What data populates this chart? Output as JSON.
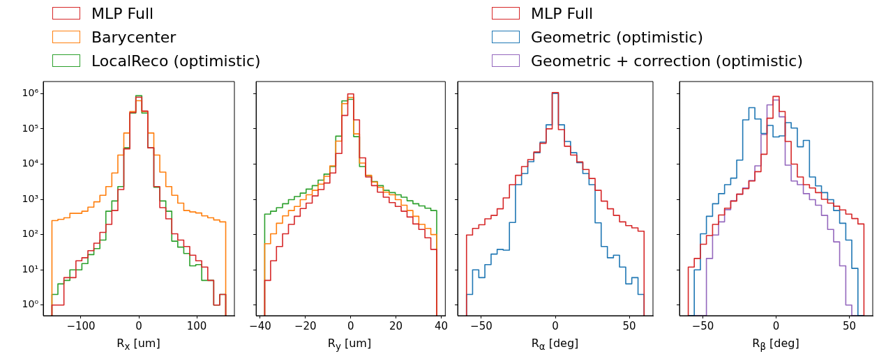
{
  "chart_data": [
    {
      "type": "histogram",
      "xlabel": "R$_{x}$ [um]",
      "legend": "top",
      "grid": false,
      "log": true,
      "bins": [
        -150,
        -139.7,
        -129.3,
        -119,
        -108.6,
        -98.3,
        -87.9,
        -77.6,
        -67.2,
        -56.9,
        -46.6,
        -36.2,
        -25.9,
        -15.5,
        -5.2,
        5.2,
        15.5,
        25.9,
        36.2,
        46.6,
        56.9,
        67.2,
        77.6,
        87.9,
        98.3,
        108.6,
        119,
        129.3,
        139.7,
        150
      ],
      "series": [
        {
          "name": "MLP Full",
          "color": "#d62728",
          "values": [
            1,
            1,
            6,
            6,
            18,
            22,
            35,
            57,
            115,
            195,
            480,
            1900,
            27000,
            290000,
            790000,
            320000,
            29000,
            2300,
            580,
            280,
            105,
            70,
            46,
            26,
            18,
            12,
            5,
            1,
            2
          ]
        },
        {
          "name": "Barycenter",
          "color": "#ff7f0e",
          "values": [
            250,
            270,
            300,
            400,
            400,
            460,
            600,
            850,
            1300,
            2300,
            5600,
            18000,
            76000,
            310000,
            630000,
            310000,
            76000,
            18000,
            5900,
            2300,
            1300,
            780,
            480,
            440,
            410,
            340,
            300,
            260,
            230
          ]
        },
        {
          "name": "LocalReco (optimistic)",
          "color": "#2ca02c",
          "values": [
            2,
            4,
            5,
            10,
            10,
            15,
            27,
            40,
            70,
            460,
            900,
            2300,
            29000,
            280000,
            870000,
            280000,
            29000,
            2200,
            900,
            460,
            65,
            44,
            29,
            13,
            14,
            5,
            5,
            1,
            2
          ]
        }
      ],
      "xlim": [
        -165,
        165
      ],
      "xticks": [
        {
          "value": -100,
          "label": "−100"
        },
        0,
        100
      ],
      "ylim": [
        0.5,
        2200000
      ],
      "yticks": [
        {
          "value": 1,
          "label": "10⁰"
        },
        {
          "value": 10,
          "label": "10¹"
        },
        {
          "value": 100,
          "label": "10²"
        },
        {
          "value": 1000,
          "label": "10³"
        },
        {
          "value": 10000,
          "label": "10⁴"
        },
        {
          "value": 100000,
          "label": "10⁵"
        },
        {
          "value": 1000000,
          "label": "10⁶"
        }
      ]
    },
    {
      "type": "histogram",
      "xlabel": "R$_{y}$ [um]",
      "grid": false,
      "log": true,
      "tick_labels": "x",
      "yticks": [
        {
          "value": 1,
          "label": null
        },
        {
          "value": 10,
          "label": null
        },
        {
          "value": 100,
          "label": null
        },
        {
          "value": 1000,
          "label": null
        },
        {
          "value": 10000,
          "label": null
        },
        {
          "value": 100000,
          "label": null
        },
        {
          "value": 1000000,
          "label": null
        }
      ],
      "bins": [
        -38,
        -35.4,
        -32.8,
        -30.1,
        -27.5,
        -24.9,
        -22.3,
        -19.7,
        -17,
        -14.4,
        -11.8,
        -9.2,
        -6.6,
        -3.9,
        -1.3,
        1.3,
        3.9,
        6.6,
        9.2,
        11.8,
        14.4,
        17,
        19.7,
        22.3,
        24.9,
        27.5,
        30.1,
        32.8,
        35.4,
        38
      ],
      "series": [
        {
          "color": "#d62728",
          "values": [
            5,
            18,
            46,
            105,
            195,
            330,
            550,
            780,
            1250,
            1900,
            2900,
            5600,
            20000,
            240000,
            980000,
            180000,
            15000,
            4300,
            2450,
            1600,
            1150,
            810,
            630,
            460,
            315,
            200,
            140,
            81,
            38
          ]
        },
        {
          "color": "#ff7f0e",
          "values": [
            55,
            105,
            210,
            340,
            480,
            630,
            980,
            1350,
            1800,
            2700,
            4500,
            8900,
            45000,
            520000,
            780000,
            72000,
            10700,
            4800,
            3100,
            2200,
            1600,
            1350,
            980,
            680,
            480,
            330,
            195,
            150,
            100
          ]
        },
        {
          "color": "#2ca02c",
          "values": [
            380,
            460,
            580,
            750,
            980,
            1200,
            1500,
            1950,
            2450,
            3500,
            5200,
            8500,
            62000,
            620000,
            690000,
            60000,
            8500,
            4700,
            3200,
            2450,
            1800,
            1550,
            1350,
            1150,
            910,
            750,
            650,
            560,
            480
          ]
        }
      ],
      "xlim": [
        -41.8,
        41.8
      ],
      "xticks": [
        {
          "value": -40,
          "label": "−40"
        },
        {
          "value": -20,
          "label": "−20"
        },
        0,
        20,
        40
      ],
      "ylim": [
        0.5,
        2200000
      ]
    },
    {
      "type": "histogram",
      "xlabel": "R$_{α}$ [deg]",
      "grid": false,
      "log": true,
      "tick_labels": "x",
      "yticks": [
        {
          "value": 1,
          "label": null
        },
        {
          "value": 10,
          "label": null
        },
        {
          "value": 100,
          "label": null
        },
        {
          "value": 1000,
          "label": null
        },
        {
          "value": 10000,
          "label": null
        },
        {
          "value": 100000,
          "label": null
        },
        {
          "value": 1000000,
          "label": null
        }
      ],
      "bins": [
        -60,
        -55.9,
        -51.7,
        -47.6,
        -43.4,
        -39.3,
        -35.2,
        -31,
        -26.9,
        -22.8,
        -18.6,
        -14.5,
        -10.3,
        -6.2,
        -2.1,
        2.1,
        6.2,
        10.3,
        14.5,
        18.6,
        22.8,
        26.9,
        31,
        35.2,
        39.3,
        43.4,
        47.6,
        51.7,
        55.9,
        60
      ],
      "series": [
        {
          "color": "#d62728",
          "values": [
            97,
            150,
            190,
            280,
            350,
            540,
            1100,
            2600,
            4800,
            8500,
            13400,
            22000,
            39000,
            100000,
            1070000,
            95000,
            32000,
            18000,
            11500,
            7000,
            3900,
            1800,
            890,
            540,
            350,
            230,
            180,
            155,
            125
          ]
        },
        {
          "color": "#1f77b4",
          "values": [
            2,
            10,
            6,
            14,
            28,
            38,
            36,
            220,
            2600,
            5400,
            11700,
            21000,
            42000,
            130000,
            1000000,
            130000,
            44000,
            21000,
            11000,
            5400,
            2600,
            215,
            46,
            22,
            26,
            12,
            4,
            6,
            2
          ]
        }
      ],
      "xlim": [
        -66,
        66
      ],
      "xticks": [
        {
          "value": -50,
          "label": "−50"
        },
        0,
        50
      ],
      "ylim": [
        0.5,
        2200000
      ]
    },
    {
      "type": "histogram",
      "xlabel": "R$_{β}$ [deg]",
      "legend": "top",
      "grid": false,
      "log": true,
      "tick_labels": "x",
      "yticks": [
        {
          "value": 1,
          "label": null
        },
        {
          "value": 10,
          "label": null
        },
        {
          "value": 100,
          "label": null
        },
        {
          "value": 1000,
          "label": null
        },
        {
          "value": 10000,
          "label": null
        },
        {
          "value": 100000,
          "label": null
        },
        {
          "value": 1000000,
          "label": null
        }
      ],
      "bins": [
        -60,
        -55.9,
        -51.7,
        -47.6,
        -43.4,
        -39.3,
        -35.2,
        -31,
        -26.9,
        -22.8,
        -18.6,
        -14.5,
        -10.3,
        -6.2,
        -2.1,
        2.1,
        6.2,
        10.3,
        14.5,
        18.6,
        22.8,
        26.9,
        31,
        35.2,
        39.3,
        43.4,
        47.6,
        51.7,
        55.9,
        60
      ],
      "series": [
        {
          "name": "MLP Full",
          "color": "#d62728",
          "values": [
            12,
            21,
            53,
            94,
            195,
            360,
            560,
            890,
            1400,
            2000,
            3300,
            6100,
            19000,
            200000,
            830000,
            310000,
            44000,
            10000,
            4300,
            2600,
            2100,
            1550,
            1000,
            780,
            640,
            500,
            380,
            285,
            200
          ]
        },
        {
          "name": "Geometric (optimistic)",
          "color": "#1f77b4",
          "values": [
            null,
            10,
            105,
            330,
            750,
            1450,
            2600,
            4000,
            13000,
            180000,
            400000,
            190000,
            74000,
            125000,
            59000,
            63000,
            150000,
            105000,
            31000,
            47000,
            4300,
            2400,
            1550,
            980,
            480,
            210,
            70,
            11,
            null
          ]
        },
        {
          "name": "Geometric + correction (optimistic)",
          "color": "#9467bd",
          "values": [
            null,
            null,
            null,
            21,
            97,
            230,
            510,
            910,
            1400,
            2100,
            3400,
            8900,
            69000,
            480000,
            660000,
            220000,
            9300,
            3300,
            2600,
            1450,
            980,
            680,
            350,
            140,
            62,
            13,
            1,
            null,
            null
          ]
        }
      ],
      "xlim": [
        -66,
        66
      ],
      "xticks": [
        {
          "value": -50,
          "label": "−50"
        },
        0,
        50
      ],
      "ylim": [
        0.5,
        2200000
      ]
    }
  ]
}
